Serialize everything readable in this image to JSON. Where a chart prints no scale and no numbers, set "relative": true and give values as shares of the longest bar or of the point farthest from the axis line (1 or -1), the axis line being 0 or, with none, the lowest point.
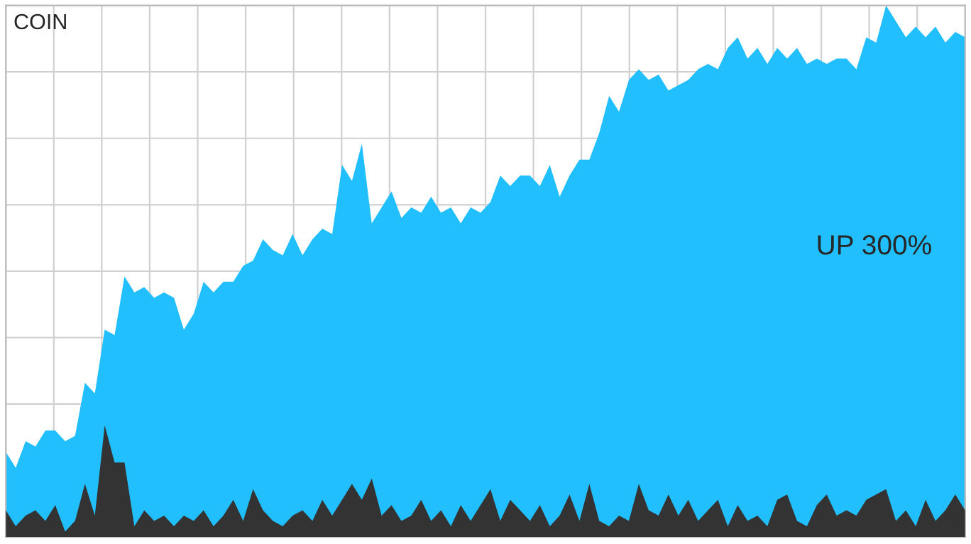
{
  "chart_data": {
    "type": "area",
    "title": "COIN",
    "relative": true,
    "grid": true,
    "categories": [
      null,
      null,
      null,
      null,
      null,
      null,
      null,
      null,
      null,
      null,
      null,
      null,
      null,
      null,
      null,
      null,
      null,
      null,
      null,
      null,
      null,
      null,
      null,
      null,
      null,
      null,
      null,
      null,
      null,
      null,
      null,
      null,
      null,
      null,
      null,
      null,
      null,
      null,
      null,
      null,
      null,
      null,
      null,
      null,
      null,
      null,
      null,
      null,
      null,
      null,
      null,
      null,
      null,
      null,
      null,
      null,
      null,
      null,
      null,
      null,
      null,
      null,
      null,
      null,
      null,
      null,
      null,
      null,
      null,
      null,
      null,
      null,
      null,
      null,
      null,
      null,
      null,
      null,
      null,
      null,
      null,
      null,
      null,
      null,
      null,
      null,
      null,
      null,
      null,
      null,
      null,
      null,
      null,
      null,
      null,
      null,
      null,
      null
    ],
    "annotations": [
      "UP 300%"
    ],
    "series": [
      {
        "color": "#22bfff",
        "values": [
          0.16,
          0.13,
          0.18,
          0.17,
          0.2,
          0.2,
          0.18,
          0.19,
          0.29,
          0.27,
          0.39,
          0.38,
          0.49,
          0.46,
          0.47,
          0.45,
          0.46,
          0.45,
          0.39,
          0.42,
          0.48,
          0.46,
          0.48,
          0.48,
          0.51,
          0.52,
          0.56,
          0.54,
          0.53,
          0.57,
          0.53,
          0.56,
          0.58,
          0.57,
          0.7,
          0.67,
          0.74,
          0.59,
          0.62,
          0.65,
          0.6,
          0.62,
          0.61,
          0.64,
          0.61,
          0.62,
          0.59,
          0.62,
          0.61,
          0.63,
          0.68,
          0.66,
          0.68,
          0.68,
          0.66,
          0.7,
          0.64,
          0.68,
          0.71,
          0.71,
          0.76,
          0.83,
          0.8,
          0.86,
          0.88,
          0.86,
          0.87,
          0.84,
          0.85,
          0.86,
          0.88,
          0.89,
          0.88,
          0.92,
          0.94,
          0.9,
          0.92,
          0.89,
          0.92,
          0.9,
          0.92,
          0.89,
          0.9,
          0.89,
          0.9,
          0.9,
          0.88,
          0.94,
          0.93,
          1.0,
          0.97,
          0.94,
          0.96,
          0.94,
          0.96,
          0.93,
          0.95,
          0.94
        ]
      },
      {
        "color": "#333333",
        "values": [
          0.05,
          0.02,
          0.04,
          0.05,
          0.03,
          0.06,
          0.01,
          0.03,
          0.1,
          0.04,
          0.21,
          0.14,
          0.14,
          0.02,
          0.05,
          0.03,
          0.04,
          0.02,
          0.04,
          0.03,
          0.05,
          0.02,
          0.04,
          0.07,
          0.03,
          0.09,
          0.05,
          0.03,
          0.02,
          0.04,
          0.05,
          0.03,
          0.07,
          0.04,
          0.07,
          0.1,
          0.07,
          0.11,
          0.04,
          0.06,
          0.03,
          0.04,
          0.07,
          0.03,
          0.05,
          0.02,
          0.06,
          0.03,
          0.06,
          0.09,
          0.03,
          0.07,
          0.05,
          0.03,
          0.06,
          0.02,
          0.04,
          0.08,
          0.03,
          0.1,
          0.03,
          0.02,
          0.04,
          0.03,
          0.1,
          0.05,
          0.04,
          0.08,
          0.04,
          0.07,
          0.03,
          0.05,
          0.07,
          0.02,
          0.06,
          0.03,
          0.04,
          0.02,
          0.07,
          0.08,
          0.03,
          0.02,
          0.06,
          0.08,
          0.04,
          0.05,
          0.04,
          0.07,
          0.08,
          0.09,
          0.03,
          0.05,
          0.02,
          0.07,
          0.03,
          0.05,
          0.08,
          0.05
        ]
      }
    ]
  }
}
